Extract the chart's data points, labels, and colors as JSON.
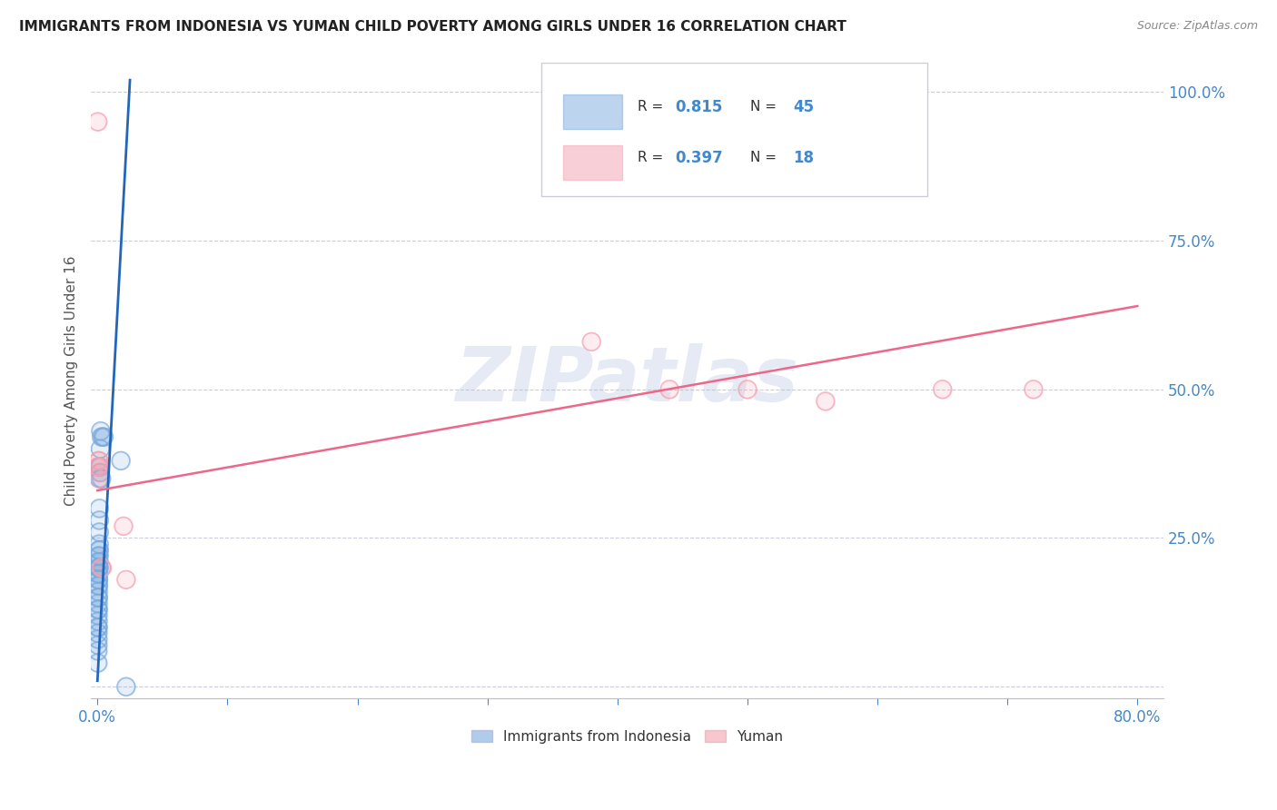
{
  "title": "IMMIGRANTS FROM INDONESIA VS YUMAN CHILD POVERTY AMONG GIRLS UNDER 16 CORRELATION CHART",
  "source": "Source: ZipAtlas.com",
  "ylabel": "Child Poverty Among Girls Under 16",
  "xlim": [
    -0.005,
    0.82
  ],
  "ylim": [
    -0.02,
    1.05
  ],
  "blue_color": "#7AABDE",
  "pink_color": "#F4A0B0",
  "blue_line_color": "#2266BB",
  "pink_line_color": "#EE6688",
  "blue_R": 0.815,
  "blue_N": 45,
  "pink_R": 0.397,
  "pink_N": 18,
  "watermark": "ZIPatlas",
  "blue_scatter_x": [
    0.0002,
    0.0002,
    0.0003,
    0.0003,
    0.0003,
    0.0003,
    0.0004,
    0.0004,
    0.0004,
    0.0004,
    0.0005,
    0.0005,
    0.0005,
    0.0006,
    0.0006,
    0.0006,
    0.0007,
    0.0007,
    0.0007,
    0.0008,
    0.0008,
    0.0009,
    0.0009,
    0.001,
    0.001,
    0.001,
    0.001,
    0.001,
    0.0012,
    0.0012,
    0.0013,
    0.0014,
    0.0015,
    0.0015,
    0.0016,
    0.002,
    0.002,
    0.0022,
    0.0025,
    0.003,
    0.003,
    0.004,
    0.005,
    0.018,
    0.022
  ],
  "blue_scatter_y": [
    0.04,
    0.06,
    0.07,
    0.08,
    0.09,
    0.1,
    0.1,
    0.11,
    0.12,
    0.13,
    0.13,
    0.14,
    0.15,
    0.15,
    0.16,
    0.17,
    0.17,
    0.18,
    0.18,
    0.19,
    0.19,
    0.2,
    0.2,
    0.2,
    0.21,
    0.21,
    0.22,
    0.22,
    0.23,
    0.23,
    0.24,
    0.26,
    0.28,
    0.3,
    0.35,
    0.36,
    0.37,
    0.4,
    0.43,
    0.35,
    0.42,
    0.42,
    0.42,
    0.38,
    0.0
  ],
  "pink_scatter_x": [
    0.0002,
    0.0004,
    0.0006,
    0.0008,
    0.001,
    0.0012,
    0.0014,
    0.002,
    0.003,
    0.0035,
    0.02,
    0.022,
    0.38,
    0.44,
    0.5,
    0.56,
    0.65,
    0.72
  ],
  "pink_scatter_y": [
    0.95,
    0.37,
    0.37,
    0.38,
    0.35,
    0.38,
    0.37,
    0.36,
    0.2,
    0.2,
    0.27,
    0.18,
    0.58,
    0.5,
    0.5,
    0.48,
    0.5,
    0.5
  ],
  "blue_line_x": [
    0.0,
    0.025
  ],
  "blue_line_y": [
    0.01,
    1.02
  ],
  "pink_line_x": [
    0.0,
    0.8
  ],
  "pink_line_y": [
    0.33,
    0.64
  ],
  "legend_label_blue": "Immigrants from Indonesia",
  "legend_label_pink": "Yuman",
  "title_color": "#222222",
  "axis_color": "#4488CC",
  "grid_color": "#CCCCDD",
  "watermark_color": "#AABBDD"
}
